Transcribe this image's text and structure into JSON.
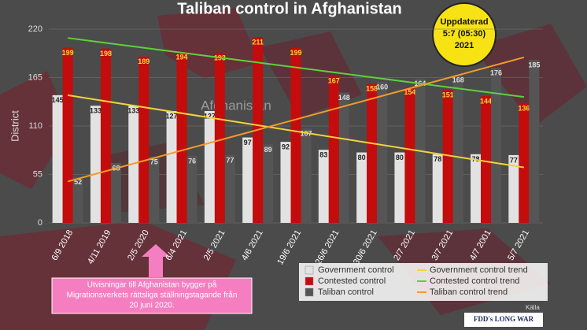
{
  "chart_data": {
    "type": "bar",
    "title": "Taliban control in Afghanistan",
    "y_label": "District",
    "badge": [
      "Uppdaterad",
      "5:7 (05:30)",
      "2021"
    ],
    "map_label": "Afghanistan",
    "categories": [
      "6/9 2018",
      "4/11 2019",
      "2/5 2020",
      "6/4 2021",
      "2/5 2021",
      "4/6 2021",
      "19/6 2021",
      "26/6 2021",
      "30/6 2021",
      "2/7 2021",
      "3/7 2021",
      "4/7 2001",
      "5/7 2021"
    ],
    "series": [
      {
        "name": "Government control",
        "color": "#e2e2e2",
        "values": [
          145,
          133,
          133,
          127,
          127,
          97,
          92,
          83,
          80,
          80,
          78,
          78,
          77
        ]
      },
      {
        "name": "Contested control",
        "color": "#c40c0c",
        "values": [
          199,
          198,
          189,
          194,
          193,
          211,
          199,
          167,
          158,
          154,
          151,
          144,
          136
        ]
      },
      {
        "name": "Taliban control",
        "color": "#555555",
        "values": [
          52,
          68,
          75,
          76,
          77,
          89,
          107,
          148,
          160,
          164,
          168,
          176,
          185
        ]
      }
    ],
    "trend_lines": [
      {
        "name": "Government control trend",
        "color": "#f2d23c",
        "start": 145,
        "end": 63
      },
      {
        "name": "Contested control trend",
        "color": "#5fd13d",
        "start": 210,
        "end": 143
      },
      {
        "name": "Taliban control trend",
        "color": "#f39b2a",
        "start": 47,
        "end": 188
      }
    ],
    "ylim": [
      0,
      220
    ],
    "yticks": [
      0,
      55,
      110,
      165,
      220
    ],
    "grid": true,
    "annotation": [
      "Utvisningar till Afghanistan bygger på",
      "Migrationsverkets rättsliga ställningstagande från",
      "20 juni 2020."
    ],
    "source_label": "Källa",
    "source": "FDD's LONG WAR"
  }
}
